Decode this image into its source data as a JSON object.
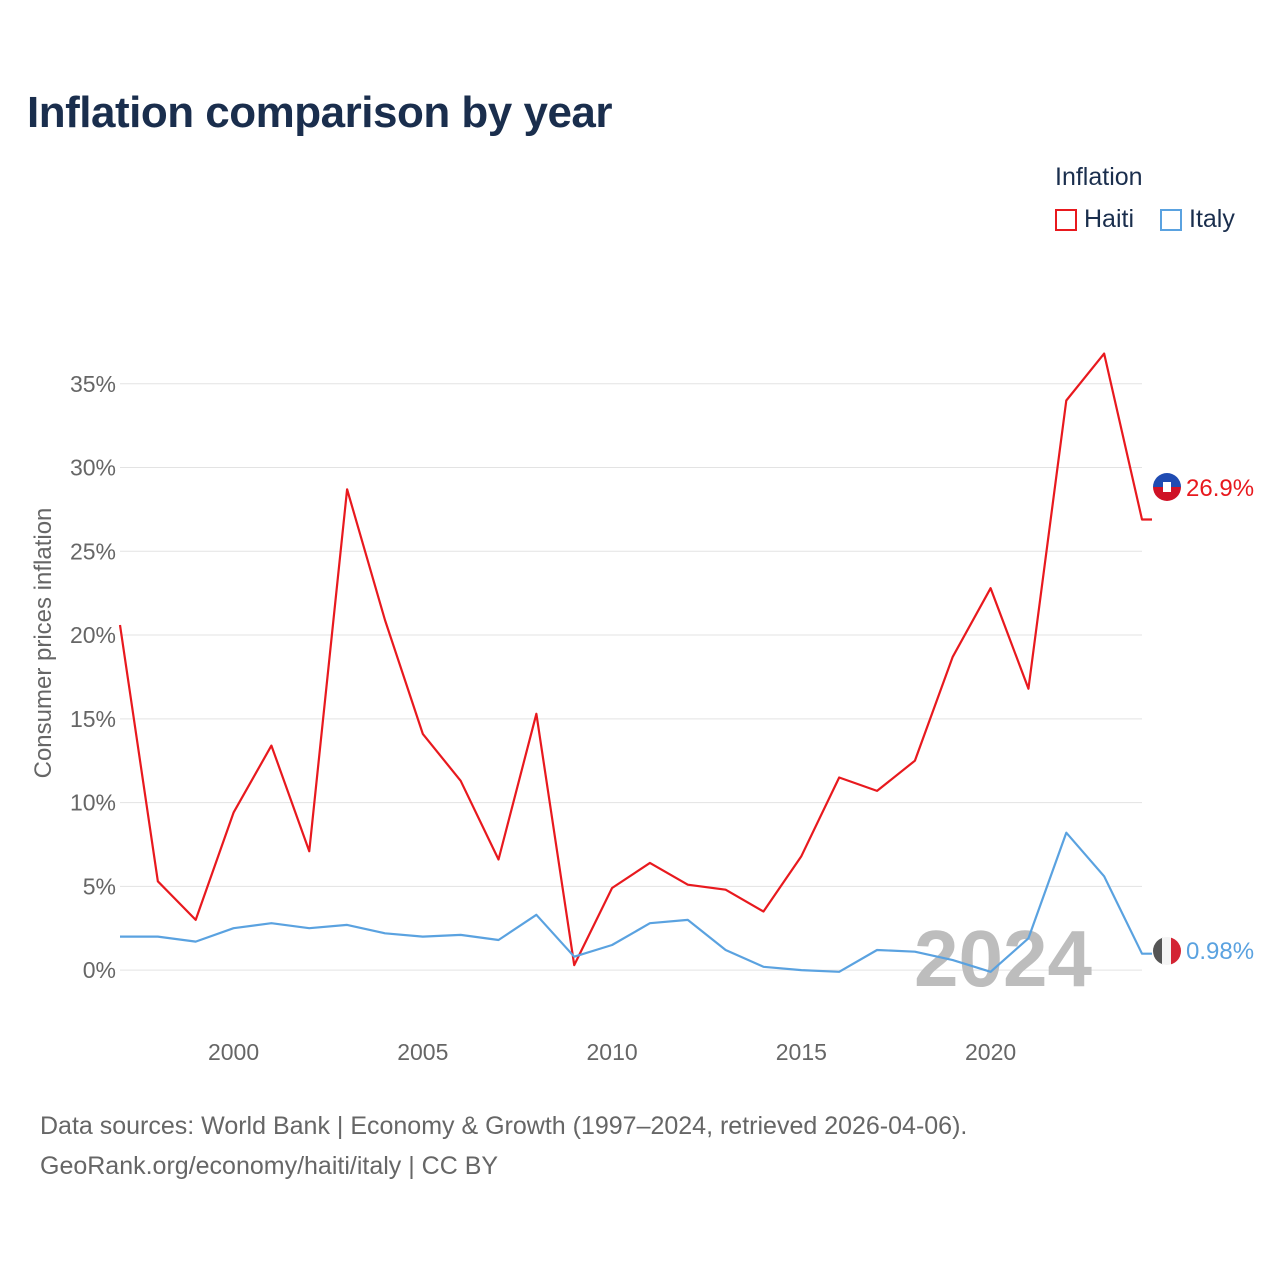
{
  "title": "Inflation comparison by year",
  "legend": {
    "title": "Inflation",
    "items": [
      {
        "label": "Haiti",
        "color": "#e8191e"
      },
      {
        "label": "Italy",
        "color": "#5aa2e0"
      }
    ]
  },
  "year_watermark": "2024",
  "source": {
    "line1": "Data sources: World Bank | Economy & Growth (1997–2024, retrieved 2026-04-06).",
    "line2": "GeoRank.org/economy/haiti/italy | CC BY"
  },
  "chart_data": {
    "type": "line",
    "title": "Inflation comparison by year",
    "xlabel": "",
    "ylabel": "Consumer prices inflation",
    "x": [
      1997,
      1998,
      1999,
      2000,
      2001,
      2002,
      2003,
      2004,
      2005,
      2006,
      2007,
      2008,
      2009,
      2010,
      2011,
      2012,
      2013,
      2014,
      2015,
      2016,
      2017,
      2018,
      2019,
      2020,
      2021,
      2022,
      2023,
      2024
    ],
    "xlim": [
      1997,
      2024
    ],
    "ylim": [
      -2.5,
      40
    ],
    "x_ticks": [
      {
        "value": 2000,
        "label": "2000"
      },
      {
        "value": 2005,
        "label": "2005"
      },
      {
        "value": 2010,
        "label": "2010"
      },
      {
        "value": 2015,
        "label": "2015"
      },
      {
        "value": 2020,
        "label": "2020"
      }
    ],
    "y_ticks": [
      {
        "value": 0,
        "label": "0%"
      },
      {
        "value": 5,
        "label": "5%"
      },
      {
        "value": 10,
        "label": "10%"
      },
      {
        "value": 15,
        "label": "15%"
      },
      {
        "value": 20,
        "label": "20%"
      },
      {
        "value": 25,
        "label": "25%"
      },
      {
        "value": 30,
        "label": "30%"
      },
      {
        "value": 35,
        "label": "35%"
      }
    ],
    "grid": true,
    "legend_position": "top-right",
    "series": [
      {
        "name": "Haiti",
        "color": "#e8191e",
        "end_label": "26.9%",
        "values": [
          20.6,
          5.3,
          3.0,
          9.4,
          13.4,
          7.1,
          28.7,
          20.9,
          14.1,
          11.3,
          6.6,
          15.3,
          0.3,
          4.9,
          6.4,
          5.1,
          4.8,
          3.5,
          6.8,
          11.5,
          10.7,
          12.5,
          18.7,
          22.8,
          16.8,
          34.0,
          36.8,
          26.9
        ]
      },
      {
        "name": "Italy",
        "color": "#5aa2e0",
        "end_label": "0.98%",
        "values": [
          2.0,
          2.0,
          1.7,
          2.5,
          2.8,
          2.5,
          2.7,
          2.2,
          2.0,
          2.1,
          1.8,
          3.3,
          0.8,
          1.5,
          2.8,
          3.0,
          1.2,
          0.2,
          0.0,
          -0.1,
          1.2,
          1.1,
          0.6,
          -0.1,
          1.9,
          8.2,
          5.6,
          0.98
        ]
      }
    ]
  }
}
